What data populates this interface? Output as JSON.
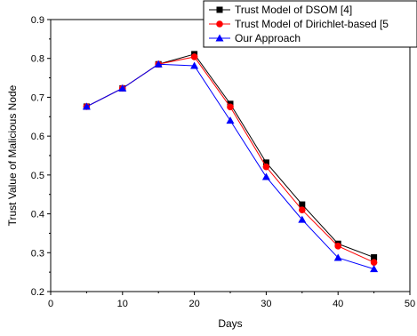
{
  "chart_data": {
    "type": "line",
    "xlabel": "Days",
    "ylabel": "Trust Value of Malicious Node",
    "xlim": [
      0,
      50
    ],
    "ylim": [
      0.2,
      0.9
    ],
    "x_ticks": [
      "0",
      "10",
      "20",
      "30",
      "40",
      "50"
    ],
    "y_ticks": [
      "0.2",
      "0.3",
      "0.4",
      "0.5",
      "0.6",
      "0.7",
      "0.8",
      "0.9"
    ],
    "x": [
      5,
      10,
      15,
      20,
      25,
      30,
      35,
      40,
      45
    ],
    "series": [
      {
        "name": "Trust Model of DSOM [4]",
        "color": "#000000",
        "marker": "square",
        "values": [
          0.676,
          0.723,
          0.785,
          0.811,
          0.683,
          0.532,
          0.424,
          0.323,
          0.288
        ]
      },
      {
        "name": "Trust Model of Dirichlet-based [5",
        "color": "#ff0000",
        "marker": "circle",
        "values": [
          0.676,
          0.723,
          0.785,
          0.804,
          0.675,
          0.521,
          0.41,
          0.317,
          0.275
        ]
      },
      {
        "name": "Our Approach",
        "color": "#0000ff",
        "marker": "triangle",
        "values": [
          0.676,
          0.723,
          0.785,
          0.781,
          0.64,
          0.495,
          0.385,
          0.287,
          0.258
        ]
      }
    ],
    "legend_position": "top-right",
    "grid": false
  }
}
